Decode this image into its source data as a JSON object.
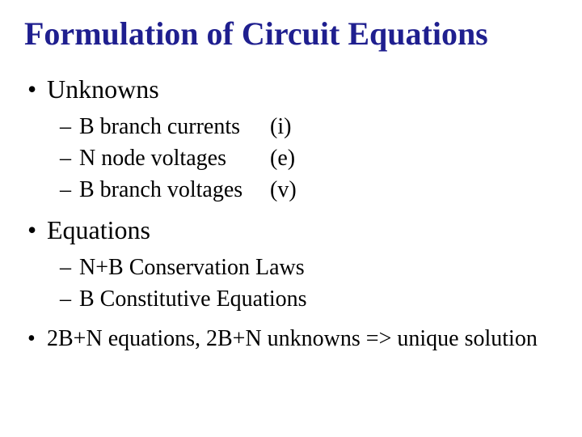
{
  "title": "Formulation of Circuit Equations",
  "colors": {
    "title": "#1f1f8f",
    "body_text": "#000000",
    "background": "#ffffff"
  },
  "typography": {
    "family": "Times New Roman",
    "title_size_pt": 40,
    "title_weight": "bold",
    "level1_size_pt": 32,
    "level2_size_pt": 28
  },
  "bullets": {
    "unknowns": {
      "label": "Unknowns",
      "items": [
        {
          "label": "B branch currents",
          "symbol": "(i)"
        },
        {
          "label": "N node voltages",
          "symbol": "(e)"
        },
        {
          "label": "B branch voltages",
          "symbol": "(v)"
        }
      ]
    },
    "equations": {
      "label": "Equations",
      "items": [
        {
          "text": "N+B Conservation Laws"
        },
        {
          "text": "B Constitutive Equations"
        }
      ]
    },
    "summary": "2B+N equations, 2B+N unknowns => unique solution"
  }
}
